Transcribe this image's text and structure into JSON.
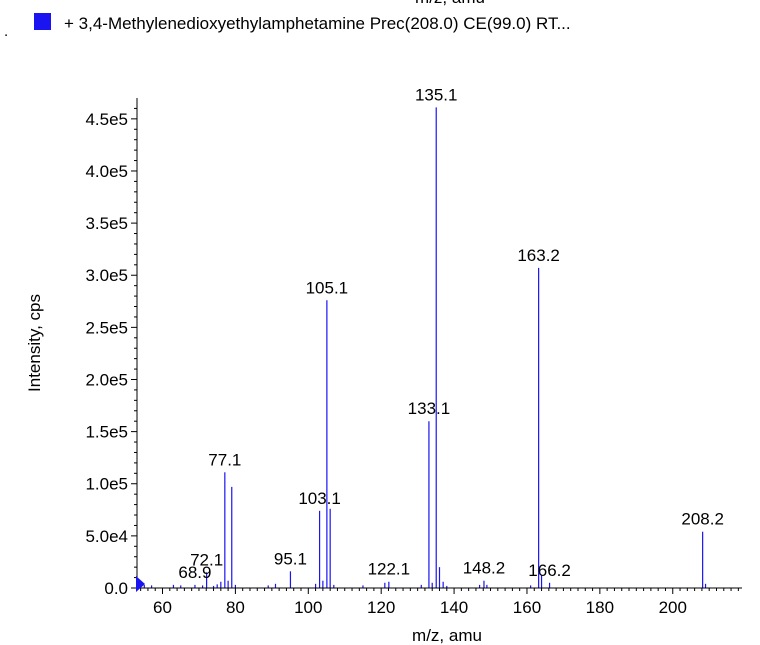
{
  "header_clip_text": "m/z, amu",
  "legend": {
    "marker": ".",
    "text": "+ 3,4-Methylenedioxyethylamphetamine Prec(208.0) CE(99.0) RT...",
    "color": "#1a14f0"
  },
  "chart_data": {
    "type": "bar",
    "xlabel": "m/z, amu",
    "ylabel": "Intensity, cps",
    "xlim": [
      53,
      219
    ],
    "ylim": [
      0,
      470000
    ],
    "x_ticks": [
      60,
      80,
      100,
      120,
      140,
      160,
      180,
      200
    ],
    "x_tick_labels": [
      "60",
      "80",
      "100",
      "120",
      "140",
      "160",
      "180",
      "200"
    ],
    "y_ticks": [
      0,
      50000,
      100000,
      150000,
      200000,
      250000,
      300000,
      350000,
      400000,
      450000
    ],
    "y_tick_labels": [
      "0.0",
      "5.0e4",
      "1.0e5",
      "1.5e5",
      "2.0e5",
      "2.5e5",
      "3.0e5",
      "3.5e5",
      "4.0e5",
      "4.5e5"
    ],
    "series_color": "#1a14f0",
    "peaks": [
      {
        "x": 55.0,
        "y": 3000
      },
      {
        "x": 57.0,
        "y": 2500
      },
      {
        "x": 63.0,
        "y": 3000
      },
      {
        "x": 65.0,
        "y": 2500
      },
      {
        "x": 68.9,
        "y": 3000
      },
      {
        "x": 71.0,
        "y": 2500
      },
      {
        "x": 72.1,
        "y": 15000
      },
      {
        "x": 74.0,
        "y": 2000
      },
      {
        "x": 75.0,
        "y": 3500
      },
      {
        "x": 76.0,
        "y": 6000
      },
      {
        "x": 77.1,
        "y": 111000
      },
      {
        "x": 78.0,
        "y": 7000
      },
      {
        "x": 79.0,
        "y": 97000
      },
      {
        "x": 80.0,
        "y": 3000
      },
      {
        "x": 89.0,
        "y": 2500
      },
      {
        "x": 91.0,
        "y": 4000
      },
      {
        "x": 95.1,
        "y": 16000
      },
      {
        "x": 102.0,
        "y": 4000
      },
      {
        "x": 103.1,
        "y": 74000
      },
      {
        "x": 104.0,
        "y": 7000
      },
      {
        "x": 105.1,
        "y": 276000
      },
      {
        "x": 106.0,
        "y": 76000
      },
      {
        "x": 107.0,
        "y": 3000
      },
      {
        "x": 115.0,
        "y": 2500
      },
      {
        "x": 121.0,
        "y": 5000
      },
      {
        "x": 122.1,
        "y": 6000
      },
      {
        "x": 131.0,
        "y": 3000
      },
      {
        "x": 133.1,
        "y": 160000
      },
      {
        "x": 134.0,
        "y": 5000
      },
      {
        "x": 135.1,
        "y": 461000
      },
      {
        "x": 136.0,
        "y": 20000
      },
      {
        "x": 137.0,
        "y": 6000
      },
      {
        "x": 138.0,
        "y": 2000
      },
      {
        "x": 147.0,
        "y": 3000
      },
      {
        "x": 148.2,
        "y": 7000
      },
      {
        "x": 149.0,
        "y": 3000
      },
      {
        "x": 161.0,
        "y": 2500
      },
      {
        "x": 163.2,
        "y": 307000
      },
      {
        "x": 164.0,
        "y": 12000
      },
      {
        "x": 166.2,
        "y": 5000
      },
      {
        "x": 208.2,
        "y": 54000
      },
      {
        "x": 209.0,
        "y": 4000
      }
    ],
    "labels": [
      {
        "text": "135.1",
        "x": 135.1,
        "y": 461000
      },
      {
        "text": "163.2",
        "x": 163.2,
        "y": 307000
      },
      {
        "text": "105.1",
        "x": 105.1,
        "y": 276000
      },
      {
        "text": "133.1",
        "x": 133.1,
        "y": 160000
      },
      {
        "text": "77.1",
        "x": 77.1,
        "y": 111000
      },
      {
        "text": "103.1",
        "x": 103.1,
        "y": 74000
      },
      {
        "text": "208.2",
        "x": 208.2,
        "y": 54000
      },
      {
        "text": "72.1",
        "x": 72.1,
        "y": 15000
      },
      {
        "text": "95.1",
        "x": 95.1,
        "y": 16000
      },
      {
        "text": "122.1",
        "x": 122.1,
        "y": 6000
      },
      {
        "text": "148.2",
        "x": 148.2,
        "y": 7000
      },
      {
        "text": "166.2",
        "x": 166.2,
        "y": 5000
      },
      {
        "text": "68.9",
        "x": 68.9,
        "y": 3000
      }
    ]
  }
}
